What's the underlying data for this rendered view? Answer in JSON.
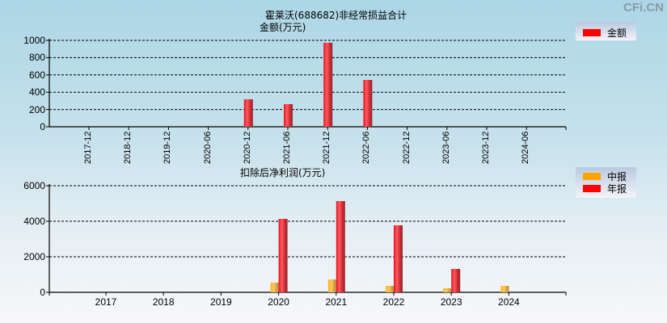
{
  "watermark": "CFi.CN",
  "colors": {
    "amount": "#ff0000",
    "interim": "#ffa500",
    "annual": "#ff0000",
    "bar_red": "#e8232c",
    "bar_orange": "#f2a62a"
  },
  "chart1": {
    "title": "霍莱沃(688682)非经常损益合计",
    "ylabel": "金额(万元)",
    "legend": [
      {
        "label": "金额",
        "color": "#ff0000"
      }
    ],
    "yticks": [
      "1000",
      "800",
      "600",
      "400",
      "200",
      "0"
    ],
    "xticks": [
      "2017-12",
      "2018-12",
      "2019-12",
      "2020-06",
      "2020-12",
      "2021-06",
      "2021-12",
      "2022-06",
      "2022-12",
      "2023-06",
      "2023-12",
      "2024-06"
    ]
  },
  "chart2": {
    "title": "扣除后净利润(万元)",
    "legend": [
      {
        "label": "中报",
        "color": "#ffa500"
      },
      {
        "label": "年报",
        "color": "#ff0000"
      }
    ],
    "yticks": [
      "6000",
      "4000",
      "2000",
      "0"
    ],
    "xticks": [
      "2017",
      "2018",
      "2019",
      "2020",
      "2021",
      "2022",
      "2023",
      "2024"
    ]
  },
  "chart_data": [
    {
      "type": "bar",
      "title": "霍莱沃(688682)非经常损益合计",
      "xlabel": "",
      "ylabel": "金额(万元)",
      "categories": [
        "2017-12",
        "2018-12",
        "2019-12",
        "2020-06",
        "2020-12",
        "2021-06",
        "2021-12",
        "2022-06",
        "2022-12",
        "2023-06",
        "2023-12",
        "2024-06"
      ],
      "series": [
        {
          "name": "金额",
          "values": [
            0,
            0,
            0,
            0,
            318,
            262,
            972,
            542,
            0,
            0,
            0,
            0
          ]
        }
      ],
      "ylim": [
        0,
        1000
      ],
      "grid": true,
      "legend_position": "right-top"
    },
    {
      "type": "bar",
      "title": "扣除后净利润(万元)",
      "xlabel": "",
      "ylabel": "",
      "categories": [
        "2017",
        "2018",
        "2019",
        "2020",
        "2021",
        "2022",
        "2023",
        "2024"
      ],
      "series": [
        {
          "name": "中报",
          "values": [
            0,
            0,
            0,
            545,
            727,
            364,
            227,
            364
          ]
        },
        {
          "name": "年报",
          "values": [
            0,
            0,
            0,
            4136,
            5136,
            3773,
            1318,
            0
          ]
        }
      ],
      "ylim": [
        0,
        6000
      ],
      "grid": true,
      "legend_position": "right-top"
    }
  ]
}
